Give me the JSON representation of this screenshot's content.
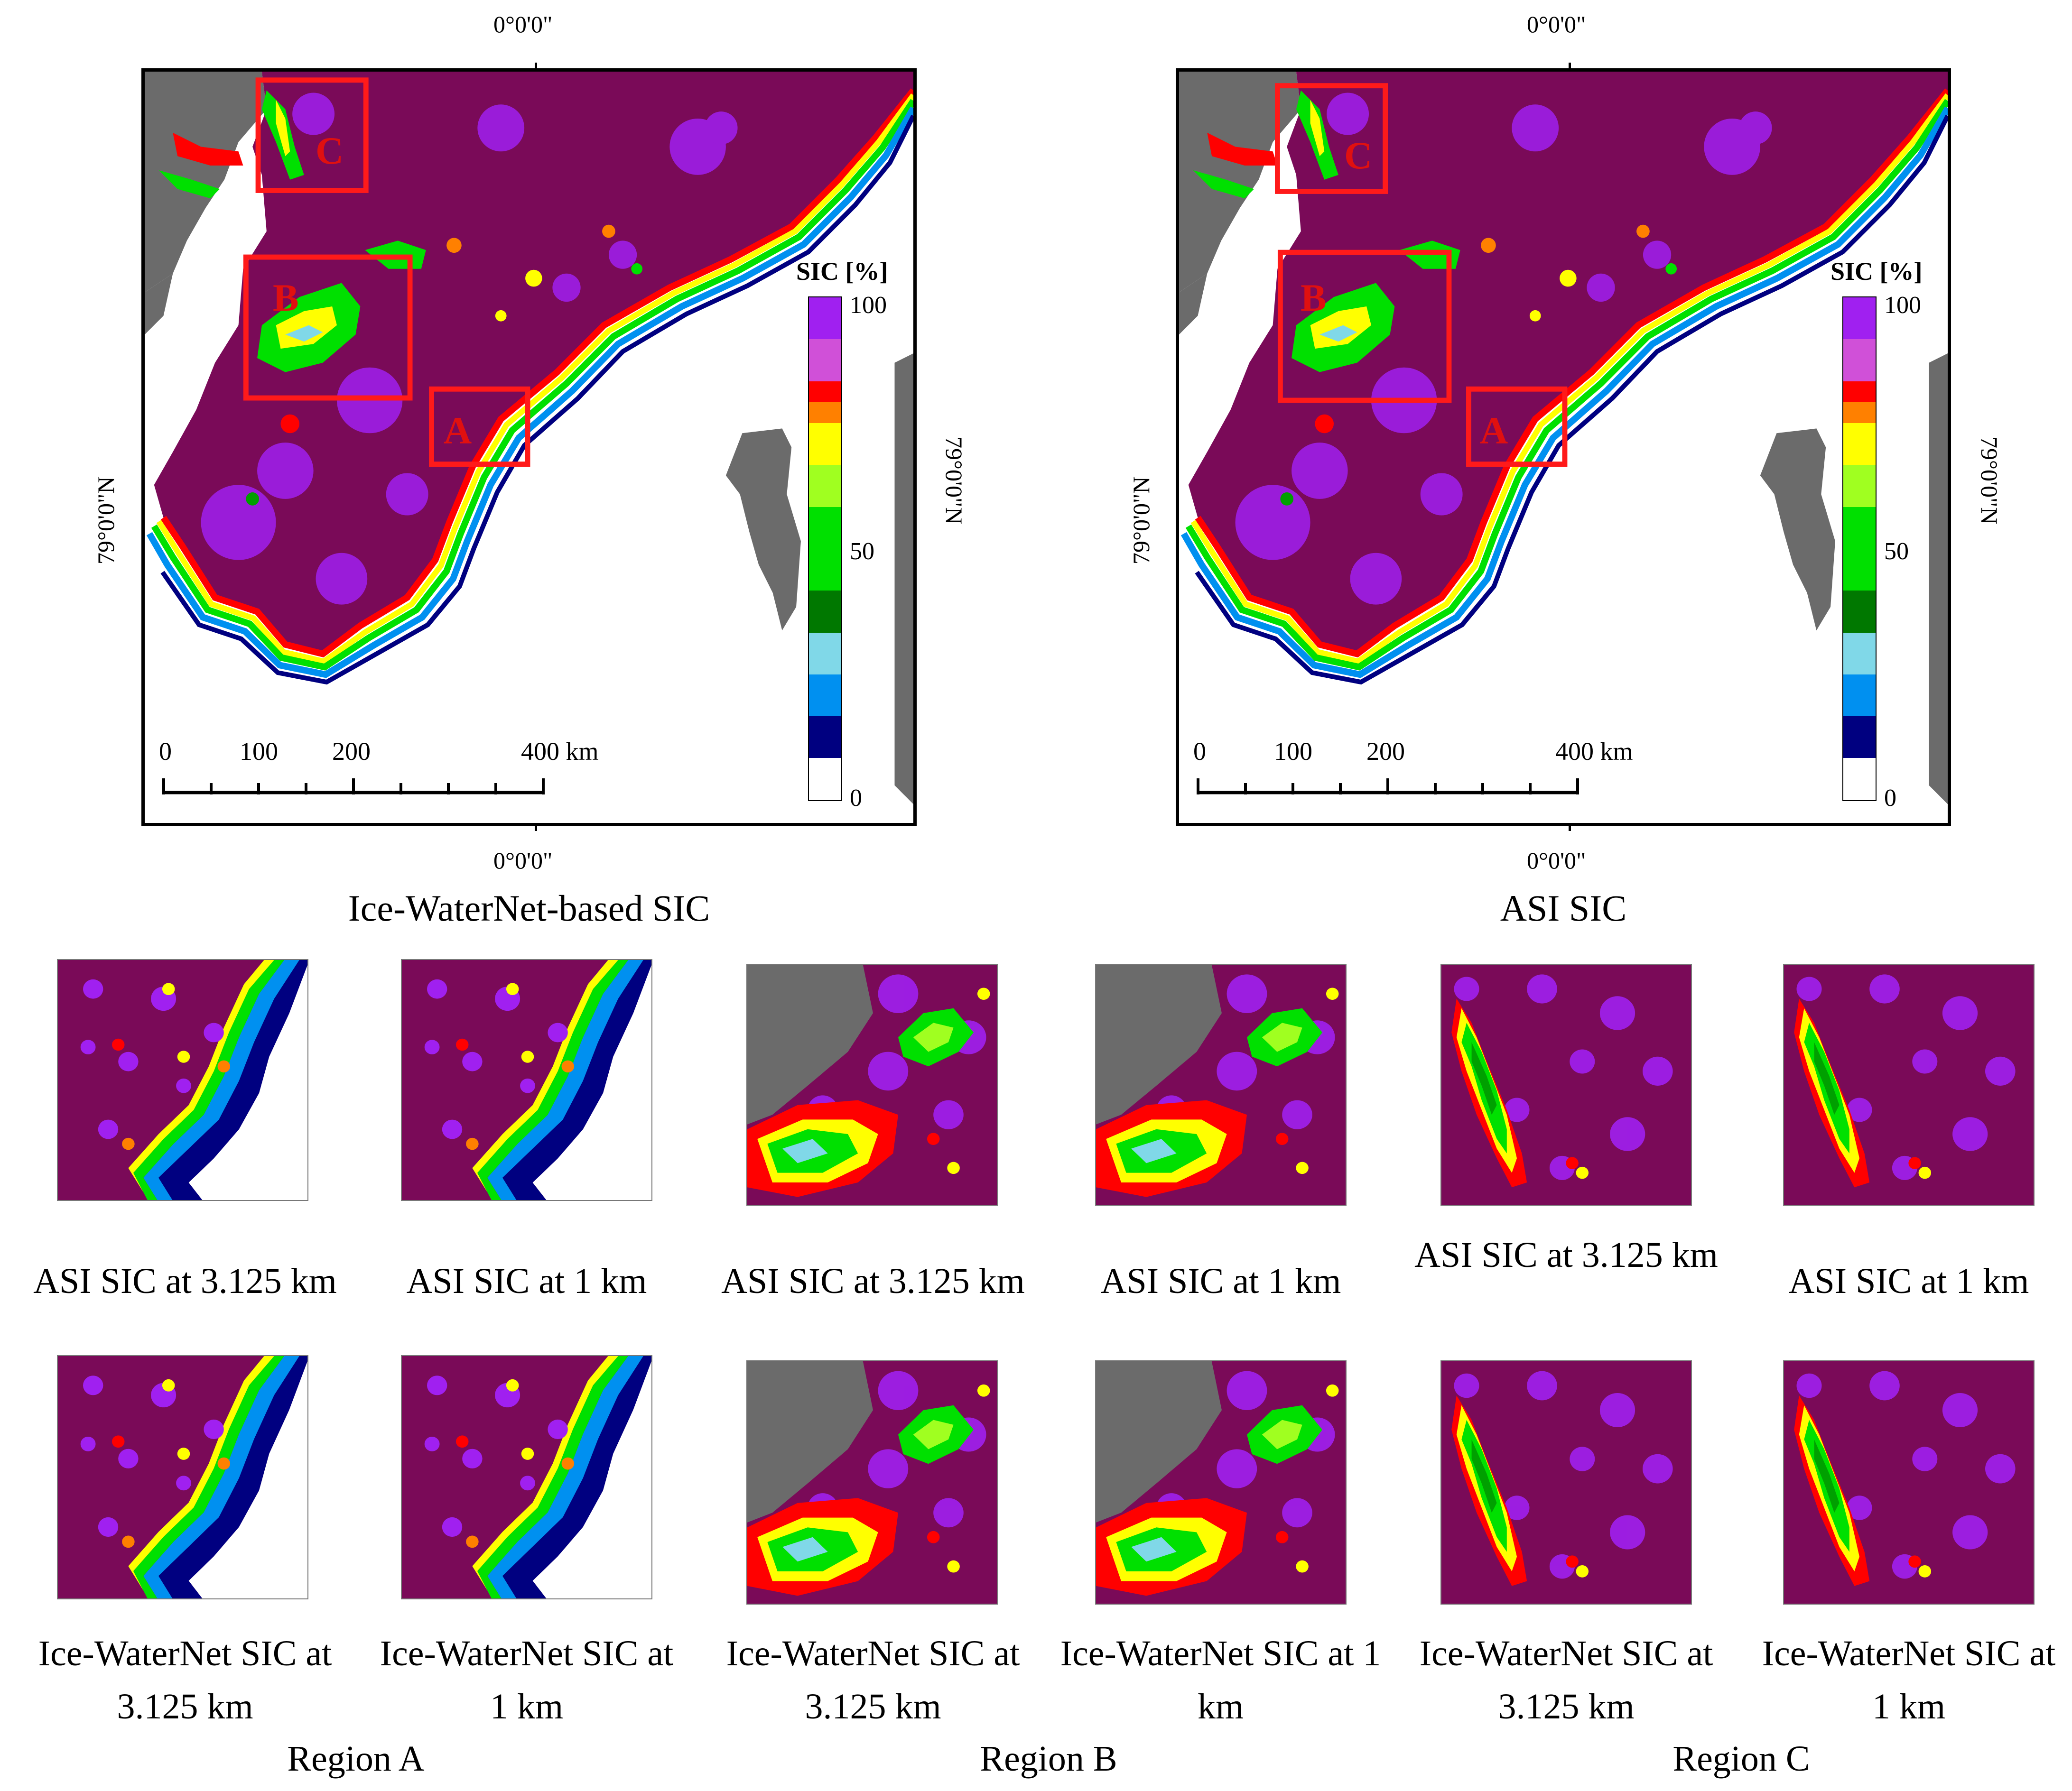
{
  "colors": {
    "land": "#6b6b6b",
    "ice100": "#7a0a58",
    "ice90": "#a020f0",
    "ice80": "#d050d8",
    "ice70": "#ff0000",
    "ice65": "#ff8000",
    "ice60": "#ffff00",
    "ice55": "#a0ff20",
    "ice50": "#00e000",
    "ice40": "#00a000",
    "ice30": "#007800",
    "ice20": "#80d8e8",
    "ice10": "#0090f0",
    "ice0": "#000080",
    "box": "#ff1a1a",
    "water": "#ffffff"
  },
  "map_left": {
    "title": "Ice-WaterNet-based SIC",
    "coord_top": "0°0'0\"",
    "coord_bottom": "0°0'0\"",
    "coord_left": "79°0'0\"N",
    "coord_right": "79°0'0\"N",
    "colorbar_title": "SIC [%]",
    "colorbar_labels": [
      "100",
      "50",
      "0"
    ],
    "scale_labels": [
      "0",
      "100",
      "200",
      "400 km"
    ],
    "box_labels": [
      "C",
      "B",
      "A"
    ]
  },
  "map_right": {
    "title": "ASI SIC",
    "coord_top": "0°0'0\"",
    "coord_bottom": "0°0'0\"",
    "coord_left": "79°0'0\"N",
    "coord_right": "79°0'0\"N",
    "colorbar_title": "SIC [%]",
    "colorbar_labels": [
      "100",
      "50",
      "0"
    ],
    "scale_labels": [
      "0",
      "100",
      "200",
      "400 km"
    ],
    "box_labels": [
      "C",
      "B",
      "A"
    ]
  },
  "thumbnails": {
    "row1": [
      "ASI SIC at 3.125 km",
      "ASI SIC at 1 km",
      "ASI SIC at 3.125 km",
      "ASI SIC at 1 km",
      "ASI SIC at 3.125 km",
      "ASI SIC at 1 km"
    ],
    "row2": [
      "Ice-WaterNet SIC at 3.125 km",
      "Ice-WaterNet SIC at 1 km",
      "Ice-WaterNet SIC at 3.125 km",
      "Ice-WaterNet SIC at 1 km",
      "Ice-WaterNet SIC at 3.125 km",
      "Ice-WaterNet SIC at 1 km"
    ]
  },
  "regions": [
    "Region A",
    "Region B",
    "Region C"
  ]
}
